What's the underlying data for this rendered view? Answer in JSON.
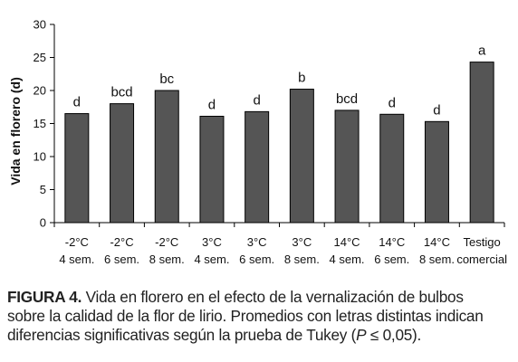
{
  "chart_data": {
    "type": "bar",
    "ylabel": "Vida en florero (d)",
    "xlabel": "",
    "ylim": [
      0,
      30
    ],
    "yticks": [
      0,
      5,
      10,
      15,
      20,
      25,
      30
    ],
    "grid": false,
    "bar_color": "#555555",
    "categories": [
      [
        "-2°C",
        "4 sem."
      ],
      [
        "-2°C",
        "6 sem."
      ],
      [
        "-2°C",
        "8 sem."
      ],
      [
        "3°C",
        "4 sem."
      ],
      [
        "3°C",
        "6 sem."
      ],
      [
        "3°C",
        "8 sem."
      ],
      [
        "14°C",
        "4 sem."
      ],
      [
        "14°C",
        "6 sem."
      ],
      [
        "14°C",
        "8 sem."
      ],
      [
        "Testigo",
        "comercial"
      ]
    ],
    "values": [
      16.5,
      18.0,
      20.0,
      16.1,
      16.8,
      20.2,
      17.0,
      16.4,
      15.3,
      24.3
    ],
    "letters": [
      "d",
      "bcd",
      "bc",
      "d",
      "d",
      "b",
      "bcd",
      "d",
      "d",
      "a"
    ]
  },
  "caption": {
    "label": "FIGURA 4.",
    "line1": "Vida en florero en el efecto de la vernalización de bulbos",
    "line2": "sobre la calidad de la flor de lirio. Promedios con letras distintas indican",
    "line3_pre": "diferencias significativas según la prueba de Tukey (",
    "line3_p": "P",
    "line3_post": " ≤ 0,05)."
  }
}
